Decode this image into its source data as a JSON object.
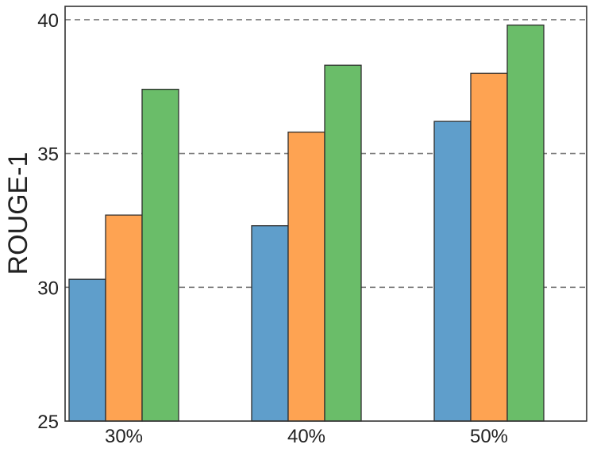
{
  "chart_data": {
    "type": "bar",
    "categories": [
      "30%",
      "40%",
      "50%"
    ],
    "series": [
      {
        "values": [
          30.3,
          32.3,
          36.2
        ],
        "color": "#5f9ecb"
      },
      {
        "values": [
          32.7,
          35.8,
          38.0
        ],
        "color": "#fea352"
      },
      {
        "values": [
          37.4,
          38.3,
          39.8
        ],
        "color": "#6abd69"
      }
    ],
    "ylabel": "ROUGE-1",
    "xlabel": "",
    "ylim": [
      25,
      40.5
    ],
    "yticks": [
      25,
      30,
      35,
      40
    ],
    "grid": "y-dashed",
    "legend": "none"
  }
}
